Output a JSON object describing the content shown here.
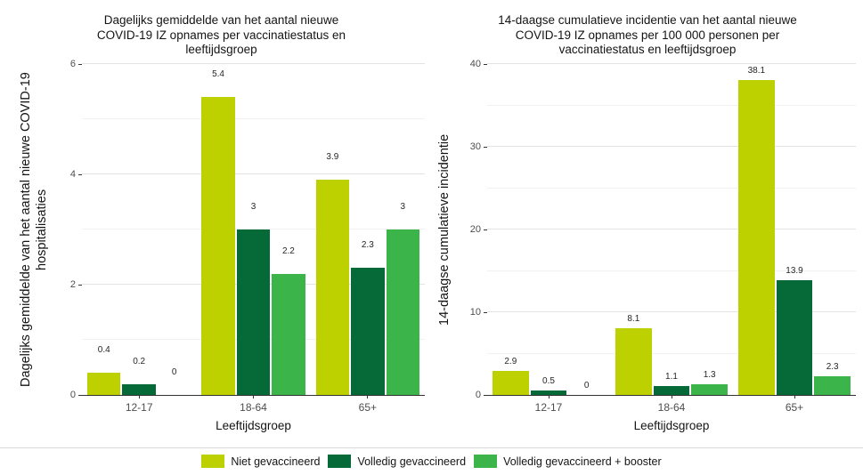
{
  "legend": {
    "items": [
      {
        "label": "Niet gevaccineerd",
        "color": "#bdd100"
      },
      {
        "label": "Volledig gevaccineerd",
        "color": "#066a38"
      },
      {
        "label": "Volledig gevaccineerd + booster",
        "color": "#3bb54a"
      }
    ]
  },
  "chart_data": [
    {
      "type": "bar",
      "title": "Dagelijks gemiddelde van het aantal nieuwe COVID-19 IZ opnames per vaccinatiestatus en leeftijdsgroep",
      "ylabel": "Dagelijks gemiddelde van het aantal nieuwe COVID-19 hospitalisaties",
      "xlabel": "Leeftijdsgroep",
      "categories": [
        "12-17",
        "18-64",
        "65+"
      ],
      "series": [
        {
          "name": "Niet gevaccineerd",
          "values": [
            0.4,
            5.4,
            3.9
          ],
          "labels": [
            "0.4",
            "5.4",
            "3.9"
          ]
        },
        {
          "name": "Volledig gevaccineerd",
          "values": [
            0.2,
            3,
            2.3
          ],
          "labels": [
            "0.2",
            "3",
            "2.3"
          ]
        },
        {
          "name": "Volledig gevaccineerd + booster",
          "values": [
            0,
            2.2,
            3
          ],
          "labels": [
            "0",
            "2.2",
            "3"
          ]
        }
      ],
      "ylim": [
        0,
        6
      ],
      "yticks": [
        0,
        2,
        4,
        6
      ],
      "grid": "on",
      "legend_position": "bottom"
    },
    {
      "type": "bar",
      "title": "14-daagse cumulatieve incidentie van het aantal nieuwe COVID-19 IZ opnames per 100 000 personen per vaccinatiestatus en leeftijdsgroep",
      "ylabel": "14-daagse cumulatieve incidentie",
      "xlabel": "Leeftijdsgroep",
      "categories": [
        "12-17",
        "18-64",
        "65+"
      ],
      "series": [
        {
          "name": "Niet gevaccineerd",
          "values": [
            2.9,
            8.1,
            38.1
          ],
          "labels": [
            "2.9",
            "8.1",
            "38.1"
          ]
        },
        {
          "name": "Volledig gevaccineerd",
          "values": [
            0.5,
            1.1,
            13.9
          ],
          "labels": [
            "0.5",
            "1.1",
            "13.9"
          ]
        },
        {
          "name": "Volledig gevaccineerd + booster",
          "values": [
            0,
            1.3,
            2.3
          ],
          "labels": [
            "0",
            "1.3",
            "2.3"
          ]
        }
      ],
      "ylim": [
        0,
        40
      ],
      "yticks": [
        0,
        10,
        20,
        30,
        40
      ],
      "grid": "on",
      "legend_position": "bottom"
    }
  ]
}
